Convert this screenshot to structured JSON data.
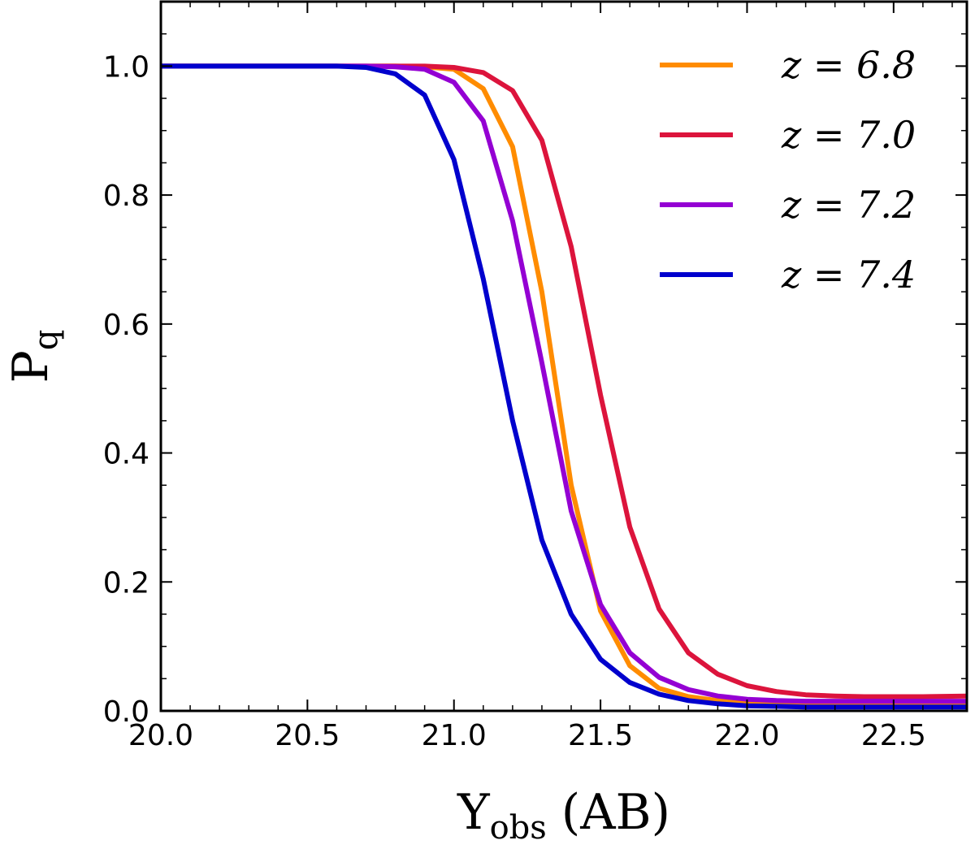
{
  "chart_data": {
    "type": "line",
    "title": "",
    "xlabel": {
      "main": "Y",
      "sub": "obs",
      "suffix": "(AB)"
    },
    "ylabel": {
      "main": "P",
      "sub": "q"
    },
    "xlim": [
      20.0,
      22.75
    ],
    "ylim": [
      0.0,
      1.1
    ],
    "xticks": [
      "20.0",
      "20.5",
      "21.0",
      "21.5",
      "22.0",
      "22.5"
    ],
    "yticks": [
      "0.0",
      "0.2",
      "0.4",
      "0.6",
      "0.8",
      "1.0"
    ],
    "grid": false,
    "legend_position": "top-right",
    "x": [
      20.0,
      20.1,
      20.2,
      20.3,
      20.4,
      20.5,
      20.6,
      20.7,
      20.8,
      20.9,
      21.0,
      21.1,
      21.2,
      21.3,
      21.4,
      21.5,
      21.6,
      21.7,
      21.8,
      21.9,
      22.0,
      22.1,
      22.2,
      22.3,
      22.4,
      22.5,
      22.6,
      22.75
    ],
    "series": [
      {
        "name": "z = 6.8",
        "label": "z = 6.8",
        "color": "#ff8c00",
        "values": [
          1.0,
          1.0,
          1.0,
          1.0,
          1.0,
          1.0,
          1.0,
          1.0,
          1.0,
          0.999,
          0.995,
          0.965,
          0.875,
          0.65,
          0.35,
          0.155,
          0.07,
          0.035,
          0.022,
          0.016,
          0.013,
          0.012,
          0.011,
          0.011,
          0.011,
          0.011,
          0.011,
          0.011
        ]
      },
      {
        "name": "z = 7.0",
        "label": "z = 7.0",
        "color": "#dc143c",
        "values": [
          1.0,
          1.0,
          1.0,
          1.0,
          1.0,
          1.0,
          1.0,
          1.0,
          1.0,
          1.0,
          0.998,
          0.99,
          0.962,
          0.885,
          0.72,
          0.49,
          0.285,
          0.158,
          0.09,
          0.057,
          0.039,
          0.03,
          0.025,
          0.023,
          0.022,
          0.022,
          0.022,
          0.023
        ]
      },
      {
        "name": "z = 7.2",
        "label": "z = 7.2",
        "color": "#9400d3",
        "values": [
          1.0,
          1.0,
          1.0,
          1.0,
          1.0,
          1.0,
          1.0,
          1.0,
          0.999,
          0.995,
          0.975,
          0.915,
          0.76,
          0.54,
          0.31,
          0.165,
          0.09,
          0.052,
          0.033,
          0.023,
          0.018,
          0.016,
          0.015,
          0.015,
          0.015,
          0.015,
          0.015,
          0.015
        ]
      },
      {
        "name": "z = 7.4",
        "label": "z = 7.4",
        "color": "#0000cd",
        "values": [
          1.0,
          1.0,
          1.0,
          1.0,
          1.0,
          1.0,
          1.0,
          0.998,
          0.988,
          0.955,
          0.855,
          0.67,
          0.45,
          0.265,
          0.15,
          0.08,
          0.044,
          0.026,
          0.016,
          0.011,
          0.008,
          0.007,
          0.006,
          0.006,
          0.006,
          0.006,
          0.006,
          0.006
        ]
      }
    ]
  }
}
